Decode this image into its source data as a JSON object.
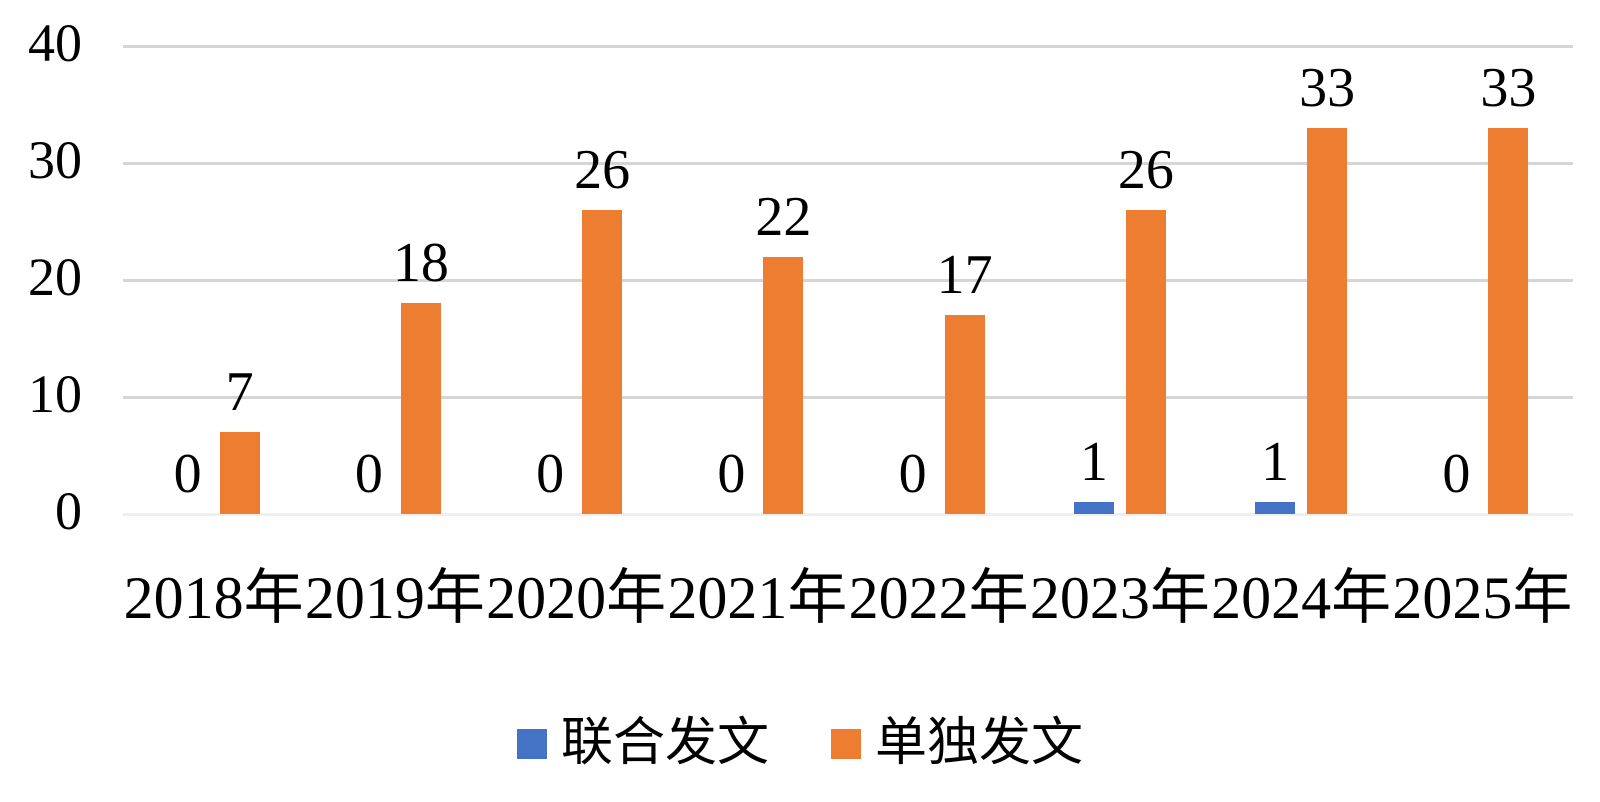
{
  "chart_data": {
    "type": "bar",
    "title": "",
    "categories": [
      "2018年",
      "2019年",
      "2020年",
      "2021年",
      "2022年",
      "2023年",
      "2024年",
      "2025年"
    ],
    "series": [
      {
        "name": "联合发文",
        "color": "#4472C4",
        "values": [
          0,
          0,
          0,
          0,
          0,
          1,
          1,
          0
        ]
      },
      {
        "name": "单独发文",
        "color": "#ED7D31",
        "values": [
          7,
          18,
          26,
          22,
          17,
          26,
          33,
          33
        ]
      }
    ],
    "y_ticks": [
      0,
      10,
      20,
      30,
      40
    ],
    "ylim": [
      0,
      40
    ],
    "xlabel": "",
    "ylabel": "",
    "grid": "horizontal",
    "gridline_color": "#D5D5D5",
    "baseline_color": "#EFEFEF",
    "data_labels": true,
    "data_label_color": "#000000",
    "axis_text_color": "#000000",
    "legend_position": "bottom",
    "background": "#FFFFFF"
  }
}
